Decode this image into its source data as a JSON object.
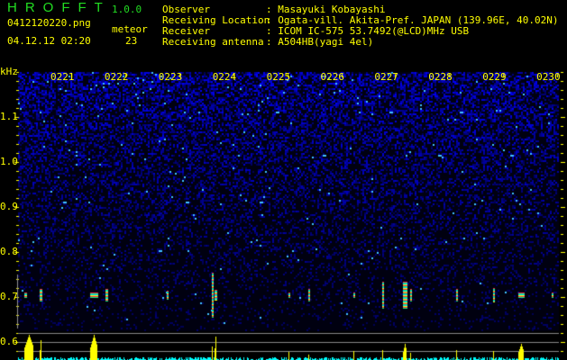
{
  "app": {
    "title": "HROFFT",
    "version": "1.0.0"
  },
  "file": {
    "name": "0412120220.png",
    "datetime": "04.12.12 02:20"
  },
  "meteor": {
    "label": "meteor",
    "count": "23"
  },
  "info": [
    {
      "label": "Observer",
      "value": ": Masayuki Kobayashi"
    },
    {
      "label": "Receiving Location",
      "value": ": Ogata-vill. Akita-Pref. JAPAN (139.96E, 40.02N)"
    },
    {
      "label": "Receiver",
      "value": ": ICOM IC-575 53.7492(@LCD)MHz USB"
    },
    {
      "label": "Receiving antenna",
      "value": ": A504HB(yagi 4el)"
    }
  ],
  "axis": {
    "unit": "kHz",
    "freq_ticks": [
      "1.1",
      "1.0",
      "0.9",
      "0.8",
      "0.7",
      "0.6"
    ],
    "time_ticks": [
      "0221",
      "0222",
      "0223",
      "0224",
      "0225",
      "0226",
      "0227",
      "0228",
      "0229",
      "0230"
    ]
  },
  "colors": {
    "text": "#ffff00",
    "title": "#22dd22",
    "noise": "#1a1aff",
    "meteor_bar": "#ffff00",
    "baseline_bar": "#00ffff"
  }
}
